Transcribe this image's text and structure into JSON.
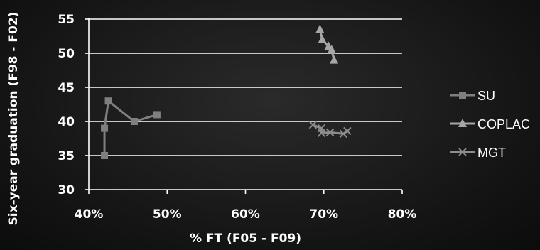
{
  "chart_data": {
    "type": "line",
    "xlabel": "% FT (F05 - F09)",
    "ylabel": "Six-year graduation (F98 - F02)",
    "xlim": [
      0.4,
      0.8
    ],
    "ylim": [
      30,
      55
    ],
    "x_ticks": [
      0.4,
      0.5,
      0.6,
      0.7,
      0.8
    ],
    "x_tick_labels": [
      "40%",
      "50%",
      "60%",
      "70%",
      "80%"
    ],
    "y_ticks": [
      30,
      35,
      40,
      45,
      50,
      55
    ],
    "y_tick_labels": [
      "30",
      "35",
      "40",
      "45",
      "50",
      "55"
    ],
    "grid": true,
    "legend_position": "right",
    "series": [
      {
        "name": "SU",
        "marker": "square",
        "color": "#7f7f7f",
        "points": [
          [
            0.42,
            35
          ],
          [
            0.42,
            39
          ],
          [
            0.425,
            43
          ],
          [
            0.458,
            40
          ],
          [
            0.487,
            41
          ]
        ]
      },
      {
        "name": "COPLAC",
        "marker": "triangle",
        "color": "#a6a6a6",
        "points": [
          [
            0.695,
            53.5
          ],
          [
            0.698,
            52
          ],
          [
            0.706,
            51
          ],
          [
            0.71,
            50.5
          ],
          [
            0.713,
            49
          ]
        ]
      },
      {
        "name": "MGT",
        "marker": "x",
        "color": "#8c8c8c",
        "points": [
          [
            0.686,
            39.5
          ],
          [
            0.697,
            39
          ],
          [
            0.697,
            38.3
          ],
          [
            0.708,
            38.4
          ],
          [
            0.725,
            38.2
          ],
          [
            0.73,
            38.6
          ]
        ]
      }
    ]
  }
}
